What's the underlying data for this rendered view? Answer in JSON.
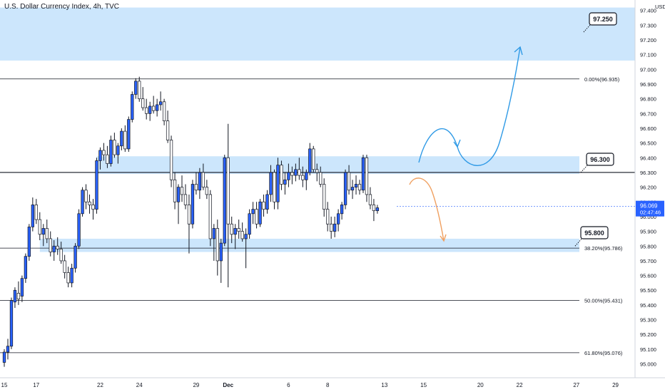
{
  "chart_data": {
    "type": "candlestick",
    "title": "U.S. Dollar Currency Index, 4h, TVC",
    "currency": "USD",
    "ylim": [
      94.95,
      97.42
    ],
    "y_ticks": [
      "97.400",
      "97.300",
      "97.200",
      "97.100",
      "97.000",
      "96.900",
      "96.800",
      "96.700",
      "96.600",
      "96.500",
      "96.400",
      "96.300",
      "96.200",
      "96.100",
      "96.000",
      "95.900",
      "95.800",
      "95.700",
      "95.600",
      "95.500",
      "95.400",
      "95.300",
      "95.200",
      "95.100",
      "95.000"
    ],
    "x_ticks": [
      {
        "label": "15",
        "i": 0
      },
      {
        "label": "17",
        "i": 9
      },
      {
        "label": "22",
        "i": 27
      },
      {
        "label": "24",
        "i": 38
      },
      {
        "label": "29",
        "i": 54
      },
      {
        "label": "Dec",
        "i": 63
      },
      {
        "label": "6",
        "i": 80
      },
      {
        "label": "8",
        "i": 91
      },
      {
        "label": "13",
        "i": 107
      },
      {
        "label": "15",
        "i": 118
      },
      {
        "label": "20",
        "i": 134
      },
      {
        "label": "22",
        "i": 145
      },
      {
        "label": "27",
        "i": 161
      },
      {
        "label": "29",
        "i": 172
      }
    ],
    "current_price": {
      "value": 96.069,
      "label": "96.069",
      "countdown": "02:47:46"
    },
    "fib_levels": [
      {
        "label": "0.00%(96.935)",
        "value": 96.935
      },
      {
        "label": "38.20%(95.786)",
        "value": 95.786
      },
      {
        "label": "50.00%(95.431)",
        "value": 95.431
      },
      {
        "label": "61.80%(95.076)",
        "value": 95.076
      }
    ],
    "zones": [
      {
        "name": "resistance-zone-top",
        "from": 97.06,
        "to": 97.42,
        "start_i": 0
      },
      {
        "name": "zone-96300",
        "from": 96.29,
        "to": 96.41,
        "start_i": 26
      },
      {
        "name": "zone-95800",
        "from": 95.76,
        "to": 95.85,
        "start_i": 10
      }
    ],
    "key_level": {
      "value": 96.3
    },
    "callouts": [
      {
        "label": "97.250",
        "value": 97.25
      },
      {
        "label": "96.300",
        "value": 96.3
      },
      {
        "label": "95.800",
        "value": 95.8
      }
    ],
    "candles": [
      [
        95.01,
        95.1,
        94.98,
        95.08
      ],
      [
        95.08,
        95.17,
        95.03,
        95.12
      ],
      [
        95.12,
        95.45,
        95.1,
        95.43
      ],
      [
        95.42,
        95.52,
        95.38,
        95.5
      ],
      [
        95.48,
        95.56,
        95.4,
        95.44
      ],
      [
        95.46,
        95.6,
        95.42,
        95.58
      ],
      [
        95.58,
        95.75,
        95.55,
        95.73
      ],
      [
        95.73,
        95.95,
        95.7,
        95.93
      ],
      [
        95.93,
        96.13,
        95.9,
        96.08
      ],
      [
        96.08,
        96.12,
        95.95,
        95.98
      ],
      [
        95.98,
        96.03,
        95.84,
        95.88
      ],
      [
        95.88,
        95.95,
        95.8,
        95.92
      ],
      [
        95.92,
        95.98,
        95.82,
        95.85
      ],
      [
        95.85,
        95.9,
        95.73,
        95.76
      ],
      [
        95.76,
        95.84,
        95.7,
        95.8
      ],
      [
        95.8,
        95.86,
        95.74,
        95.78
      ],
      [
        95.78,
        95.83,
        95.68,
        95.7
      ],
      [
        95.7,
        95.74,
        95.58,
        95.62
      ],
      [
        95.62,
        95.66,
        95.52,
        95.55
      ],
      [
        95.55,
        95.68,
        95.52,
        95.65
      ],
      [
        95.65,
        95.82,
        95.62,
        95.8
      ],
      [
        95.8,
        96.05,
        95.78,
        96.02
      ],
      [
        96.02,
        96.2,
        96.0,
        96.18
      ],
      [
        96.18,
        96.22,
        96.05,
        96.1
      ],
      [
        96.1,
        96.15,
        96.02,
        96.08
      ],
      [
        96.08,
        96.12,
        95.98,
        96.05
      ],
      [
        96.05,
        96.4,
        96.02,
        96.38
      ],
      [
        96.38,
        96.47,
        96.32,
        96.45
      ],
      [
        96.45,
        96.5,
        96.38,
        96.42
      ],
      [
        96.42,
        96.48,
        96.33,
        96.36
      ],
      [
        96.36,
        96.55,
        96.34,
        96.52
      ],
      [
        96.52,
        96.57,
        96.4,
        96.42
      ],
      [
        96.42,
        96.5,
        96.36,
        96.48
      ],
      [
        96.48,
        96.6,
        96.45,
        96.58
      ],
      [
        96.58,
        96.62,
        96.44,
        96.46
      ],
      [
        96.46,
        96.68,
        96.44,
        96.66
      ],
      [
        96.66,
        96.85,
        96.64,
        96.83
      ],
      [
        96.83,
        96.94,
        96.8,
        96.92
      ],
      [
        96.92,
        96.95,
        96.78,
        96.8
      ],
      [
        96.8,
        96.88,
        96.72,
        96.74
      ],
      [
        96.74,
        96.8,
        96.66,
        96.7
      ],
      [
        96.7,
        96.78,
        96.65,
        96.75
      ],
      [
        96.75,
        96.82,
        96.7,
        96.72
      ],
      [
        96.72,
        96.8,
        96.68,
        96.76
      ],
      [
        96.76,
        96.85,
        96.72,
        96.78
      ],
      [
        96.78,
        96.8,
        96.62,
        96.65
      ],
      [
        96.65,
        96.72,
        96.5,
        96.52
      ],
      [
        96.52,
        96.55,
        96.2,
        96.25
      ],
      [
        96.25,
        96.3,
        96.05,
        96.1
      ],
      [
        96.1,
        96.22,
        95.95,
        96.2
      ],
      [
        96.2,
        96.28,
        96.1,
        96.15
      ],
      [
        96.15,
        96.22,
        96.05,
        96.08
      ],
      [
        96.08,
        96.15,
        95.75,
        95.95
      ],
      [
        95.95,
        96.25,
        95.92,
        96.22
      ],
      [
        96.22,
        96.3,
        96.15,
        96.18
      ],
      [
        96.18,
        96.33,
        96.12,
        96.3
      ],
      [
        96.3,
        96.36,
        96.18,
        96.2
      ],
      [
        96.2,
        96.25,
        96.12,
        96.15
      ],
      [
        96.15,
        96.18,
        95.8,
        95.85
      ],
      [
        95.85,
        95.95,
        95.7,
        95.92
      ],
      [
        95.92,
        95.98,
        95.6,
        95.7
      ],
      [
        95.7,
        95.85,
        95.55,
        95.82
      ],
      [
        95.82,
        96.42,
        95.8,
        96.4
      ],
      [
        96.4,
        96.63,
        95.52,
        95.95
      ],
      [
        95.95,
        96.0,
        95.82,
        95.88
      ],
      [
        95.88,
        95.95,
        95.78,
        95.92
      ],
      [
        95.92,
        95.98,
        95.85,
        95.9
      ],
      [
        95.9,
        95.96,
        95.83,
        95.85
      ],
      [
        95.85,
        95.92,
        95.65,
        95.88
      ],
      [
        95.88,
        96.05,
        95.85,
        96.02
      ],
      [
        96.02,
        96.1,
        95.95,
        96.05
      ],
      [
        96.05,
        96.1,
        95.92,
        95.95
      ],
      [
        95.95,
        96.12,
        95.93,
        96.1
      ],
      [
        96.1,
        96.15,
        96.0,
        96.05
      ],
      [
        96.05,
        96.18,
        96.02,
        96.15
      ],
      [
        96.15,
        96.35,
        96.1,
        96.3
      ],
      [
        96.3,
        96.32,
        96.05,
        96.1
      ],
      [
        96.1,
        96.4,
        96.05,
        96.35
      ],
      [
        96.35,
        96.38,
        96.18,
        96.22
      ],
      [
        96.22,
        96.3,
        96.15,
        96.25
      ],
      [
        96.25,
        96.36,
        96.2,
        96.3
      ],
      [
        96.3,
        96.34,
        96.22,
        96.28
      ],
      [
        96.28,
        96.36,
        96.24,
        96.32
      ],
      [
        96.32,
        96.4,
        96.25,
        96.28
      ],
      [
        96.28,
        96.34,
        96.2,
        96.25
      ],
      [
        96.25,
        96.32,
        96.18,
        96.3
      ],
      [
        96.3,
        96.5,
        96.28,
        96.46
      ],
      [
        96.46,
        96.48,
        96.3,
        96.32
      ],
      [
        96.32,
        96.36,
        96.24,
        96.3
      ],
      [
        96.3,
        96.34,
        96.2,
        96.22
      ],
      [
        96.22,
        96.26,
        96.0,
        96.05
      ],
      [
        96.05,
        96.1,
        95.9,
        95.95
      ],
      [
        95.95,
        96.0,
        95.85,
        95.9
      ],
      [
        95.9,
        96.0,
        95.86,
        95.95
      ],
      [
        95.95,
        96.05,
        95.9,
        96.02
      ],
      [
        96.02,
        96.1,
        95.98,
        96.08
      ],
      [
        96.08,
        96.32,
        96.05,
        96.3
      ],
      [
        96.3,
        96.35,
        96.15,
        96.18
      ],
      [
        96.18,
        96.25,
        96.12,
        96.2
      ],
      [
        96.2,
        96.28,
        96.15,
        96.22
      ],
      [
        96.22,
        96.25,
        96.15,
        96.18
      ],
      [
        96.18,
        96.42,
        96.16,
        96.4
      ],
      [
        96.4,
        96.42,
        96.1,
        96.15
      ],
      [
        96.15,
        96.2,
        96.05,
        96.08
      ],
      [
        96.08,
        96.12,
        95.97,
        96.04
      ],
      [
        96.04,
        96.08,
        96.02,
        96.06
      ]
    ]
  },
  "projections": [
    {
      "name": "bullish-projection-arrow",
      "color": "#2f9ae6"
    },
    {
      "name": "bearish-projection-arrow",
      "color": "#f0a060"
    }
  ],
  "colors": {
    "bull": "#2962ff",
    "bear": "#ffffff",
    "wick": "#131722",
    "zone": "#bbdefb",
    "price_tag": "#2962ff",
    "grid": "#131722"
  }
}
